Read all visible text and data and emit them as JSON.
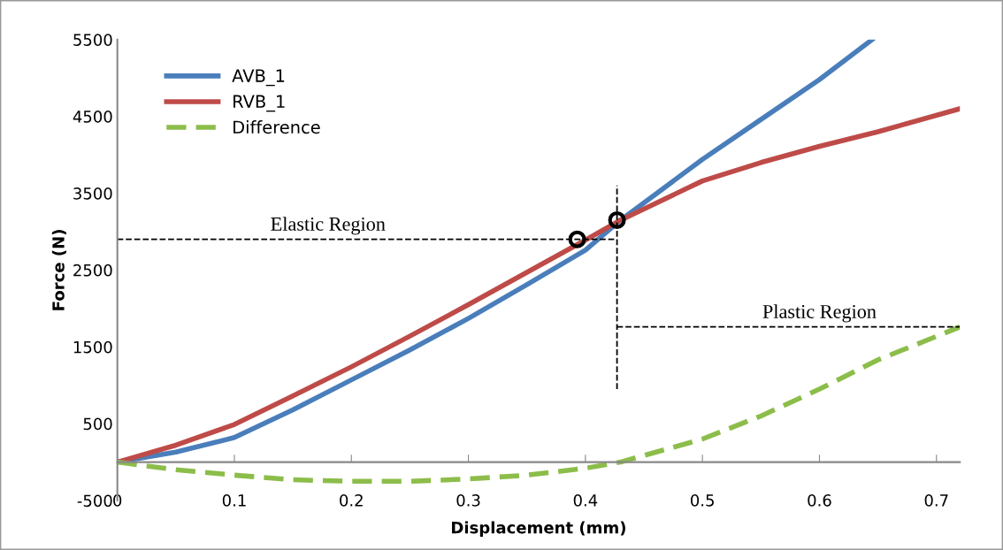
{
  "chart_data": {
    "type": "line",
    "xlabel": "Displacement (mm)",
    "ylabel": "Force (N)",
    "xlim": [
      0,
      0.72
    ],
    "xticks": [
      0,
      0.1,
      0.2,
      0.3,
      0.4,
      0.5,
      0.6,
      0.7
    ],
    "ylim": [
      -500,
      5500
    ],
    "yticks": [
      -500,
      500,
      1500,
      2500,
      3500,
      4500,
      5500
    ],
    "grid": false,
    "legend": "top left",
    "series": [
      {
        "name": "AVB_1",
        "color": "#4a7ebb",
        "line_style": "solid",
        "x": [
          0,
          0.05,
          0.1,
          0.15,
          0.2,
          0.25,
          0.3,
          0.35,
          0.4,
          0.43,
          0.5,
          0.55,
          0.6,
          0.645
        ],
        "values": [
          0,
          130,
          320,
          680,
          1070,
          1460,
          1870,
          2310,
          2760,
          3150,
          3940,
          4460,
          4980,
          5500
        ]
      },
      {
        "name": "RVB_1",
        "color": "#be4b48",
        "line_style": "solid",
        "x": [
          0,
          0.05,
          0.1,
          0.15,
          0.2,
          0.25,
          0.3,
          0.35,
          0.4,
          0.43,
          0.5,
          0.55,
          0.6,
          0.65,
          0.72
        ],
        "values": [
          0,
          220,
          490,
          860,
          1240,
          1640,
          2050,
          2470,
          2890,
          3150,
          3660,
          3900,
          4110,
          4300,
          4600
        ]
      },
      {
        "name": "Difference",
        "color": "#8cbd4a",
        "line_style": "dashed",
        "x": [
          0,
          0.05,
          0.1,
          0.15,
          0.2,
          0.25,
          0.3,
          0.35,
          0.4,
          0.43,
          0.5,
          0.55,
          0.6,
          0.65,
          0.72
        ],
        "values": [
          0,
          -100,
          -170,
          -230,
          -250,
          -250,
          -220,
          -170,
          -80,
          0,
          300,
          600,
          950,
          1330,
          1760
        ]
      },
      {
        "color": "#000000",
        "line_style": "dashed",
        "x": [
          0,
          0.427
        ],
        "values": [
          2900,
          2900
        ]
      },
      {
        "color": "#000000",
        "line_style": "dashed",
        "x": [
          0.427,
          0.427
        ],
        "values": [
          950,
          3600
        ]
      },
      {
        "color": "#000000",
        "line_style": "dashed",
        "x": [
          0.427,
          0.72
        ],
        "values": [
          1760,
          1760
        ]
      },
      {
        "type": "scatter",
        "color": "#000000",
        "marker": "circle",
        "x": [
          0.393,
          0.427
        ],
        "values": [
          2900,
          3150
        ]
      }
    ],
    "annotations": [
      {
        "text": "Elastic Region",
        "x": 0.18,
        "y": 2900
      },
      {
        "text": "Plastic Region",
        "x": 0.6,
        "y": 1760
      }
    ]
  }
}
